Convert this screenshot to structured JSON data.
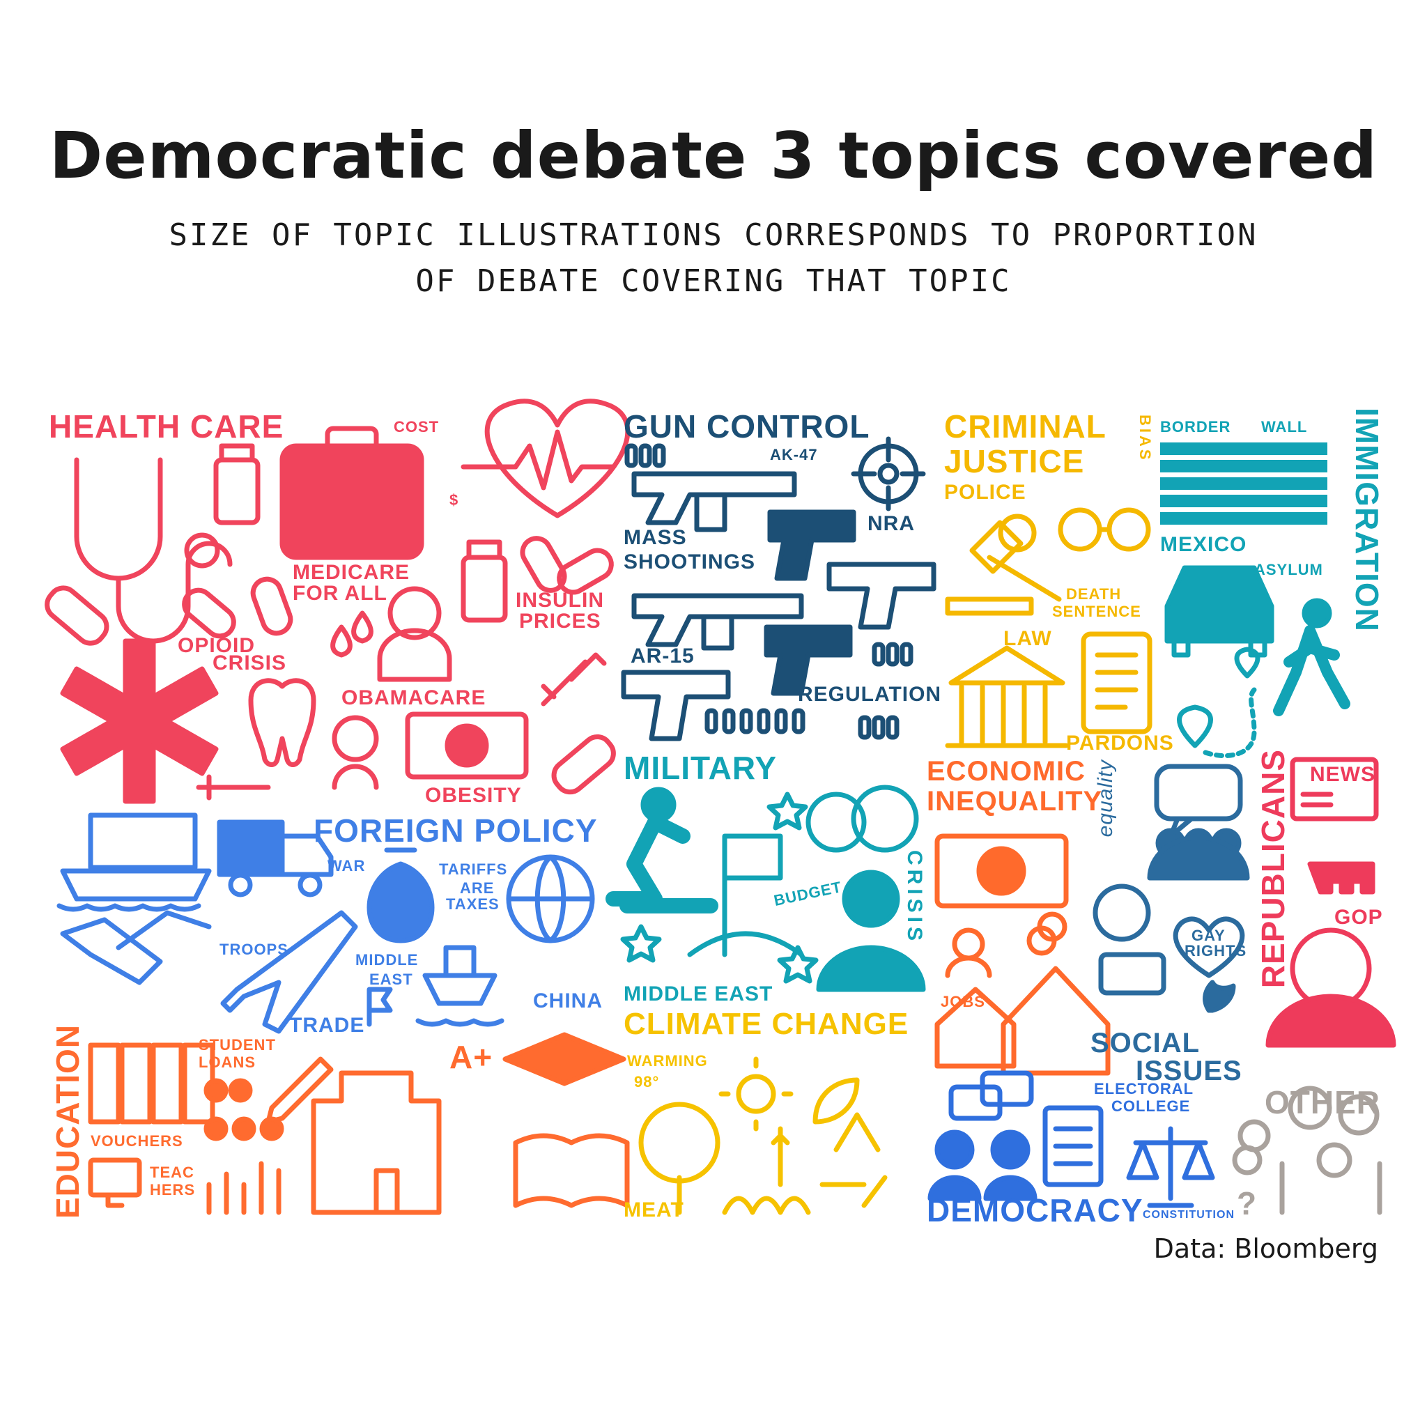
{
  "header": {
    "title": "Democratic debate 3 topics covered",
    "subtitle_line1": "SIZE OF TOPIC ILLUSTRATIONS  CORRESPONDS TO PROPORTION",
    "subtitle_line2": "OF DEBATE COVERING THAT TOPIC"
  },
  "colors": {
    "health_care": "#f0445c",
    "gun_control": "#1c4f75",
    "criminal_justice": "#f5b800",
    "immigration": "#12a3b5",
    "foreign_policy": "#3f7fe6",
    "military": "#12a3b5",
    "economic_inequality": "#ff6a2c",
    "social_issues": "#2b6b9e",
    "republicans": "#ee3b5b",
    "education": "#ff6b2f",
    "climate_change": "#f6c200",
    "democracy": "#2f6fde",
    "other": "#a9a29d"
  },
  "topics": {
    "health_care": {
      "title": "HEALTH CARE",
      "labels": [
        "COST",
        "$",
        "MEDICARE",
        "FOR ALL",
        "INSULIN",
        "PRICES",
        "OPIOID",
        "CRISIS",
        "OBAMACARE",
        "OBESITY"
      ]
    },
    "gun_control": {
      "title": "GUN CONTROL",
      "labels": [
        "AK-47",
        "NRA",
        "MASS",
        "SHOOTINGS",
        "AR-15",
        "REGULATION"
      ]
    },
    "criminal_justice": {
      "title_line1": "CRIMINAL",
      "title_line2": "JUSTICE",
      "labels": [
        "BIAS",
        "POLICE",
        "DEATH",
        "SENTENCE",
        "LAW",
        "PARDONS"
      ]
    },
    "immigration": {
      "title": "IMMIGRATION",
      "labels": [
        "BORDER",
        "WALL",
        "MEXICO",
        "ASYLUM"
      ]
    },
    "foreign_policy": {
      "title": "FOREIGN POLICY",
      "labels": [
        "WAR",
        "TARIFFS",
        "ARE",
        "TAXES",
        "TROOPS",
        "MIDDLE",
        "EAST",
        "TRADE",
        "CHINA"
      ]
    },
    "military": {
      "title": "MILITARY",
      "labels": [
        "BUDGET",
        "CRISIS",
        "MIDDLE EAST"
      ]
    },
    "economic_inequality": {
      "title_line1": "ECONOMIC",
      "title_line2": "INEQUALITY",
      "labels": [
        "JOBS"
      ]
    },
    "social_issues": {
      "title_line1": "SOCIAL",
      "title_line2": "ISSUES",
      "labels": [
        "equality",
        "GAY",
        "RIGHTS"
      ]
    },
    "republicans": {
      "title": "REPUBLICANS",
      "labels": [
        "NEWS",
        "GOP"
      ]
    },
    "education": {
      "title": "EDUCATION",
      "labels": [
        "STUDENT",
        "LOANS",
        "VOUCHERS",
        "TEAC",
        "HERS",
        "A+"
      ]
    },
    "climate_change": {
      "title": "CLIMATE CHANGE",
      "labels": [
        "WARMING",
        "98°",
        "MEAT"
      ]
    },
    "democracy": {
      "title": "DEMOCRACY",
      "labels": [
        "ELECTORAL",
        "COLLEGE",
        "CONSTITUTION"
      ]
    },
    "other": {
      "title": "OTHER",
      "labels": [
        "?"
      ]
    }
  },
  "credit": "Data: Bloomberg"
}
